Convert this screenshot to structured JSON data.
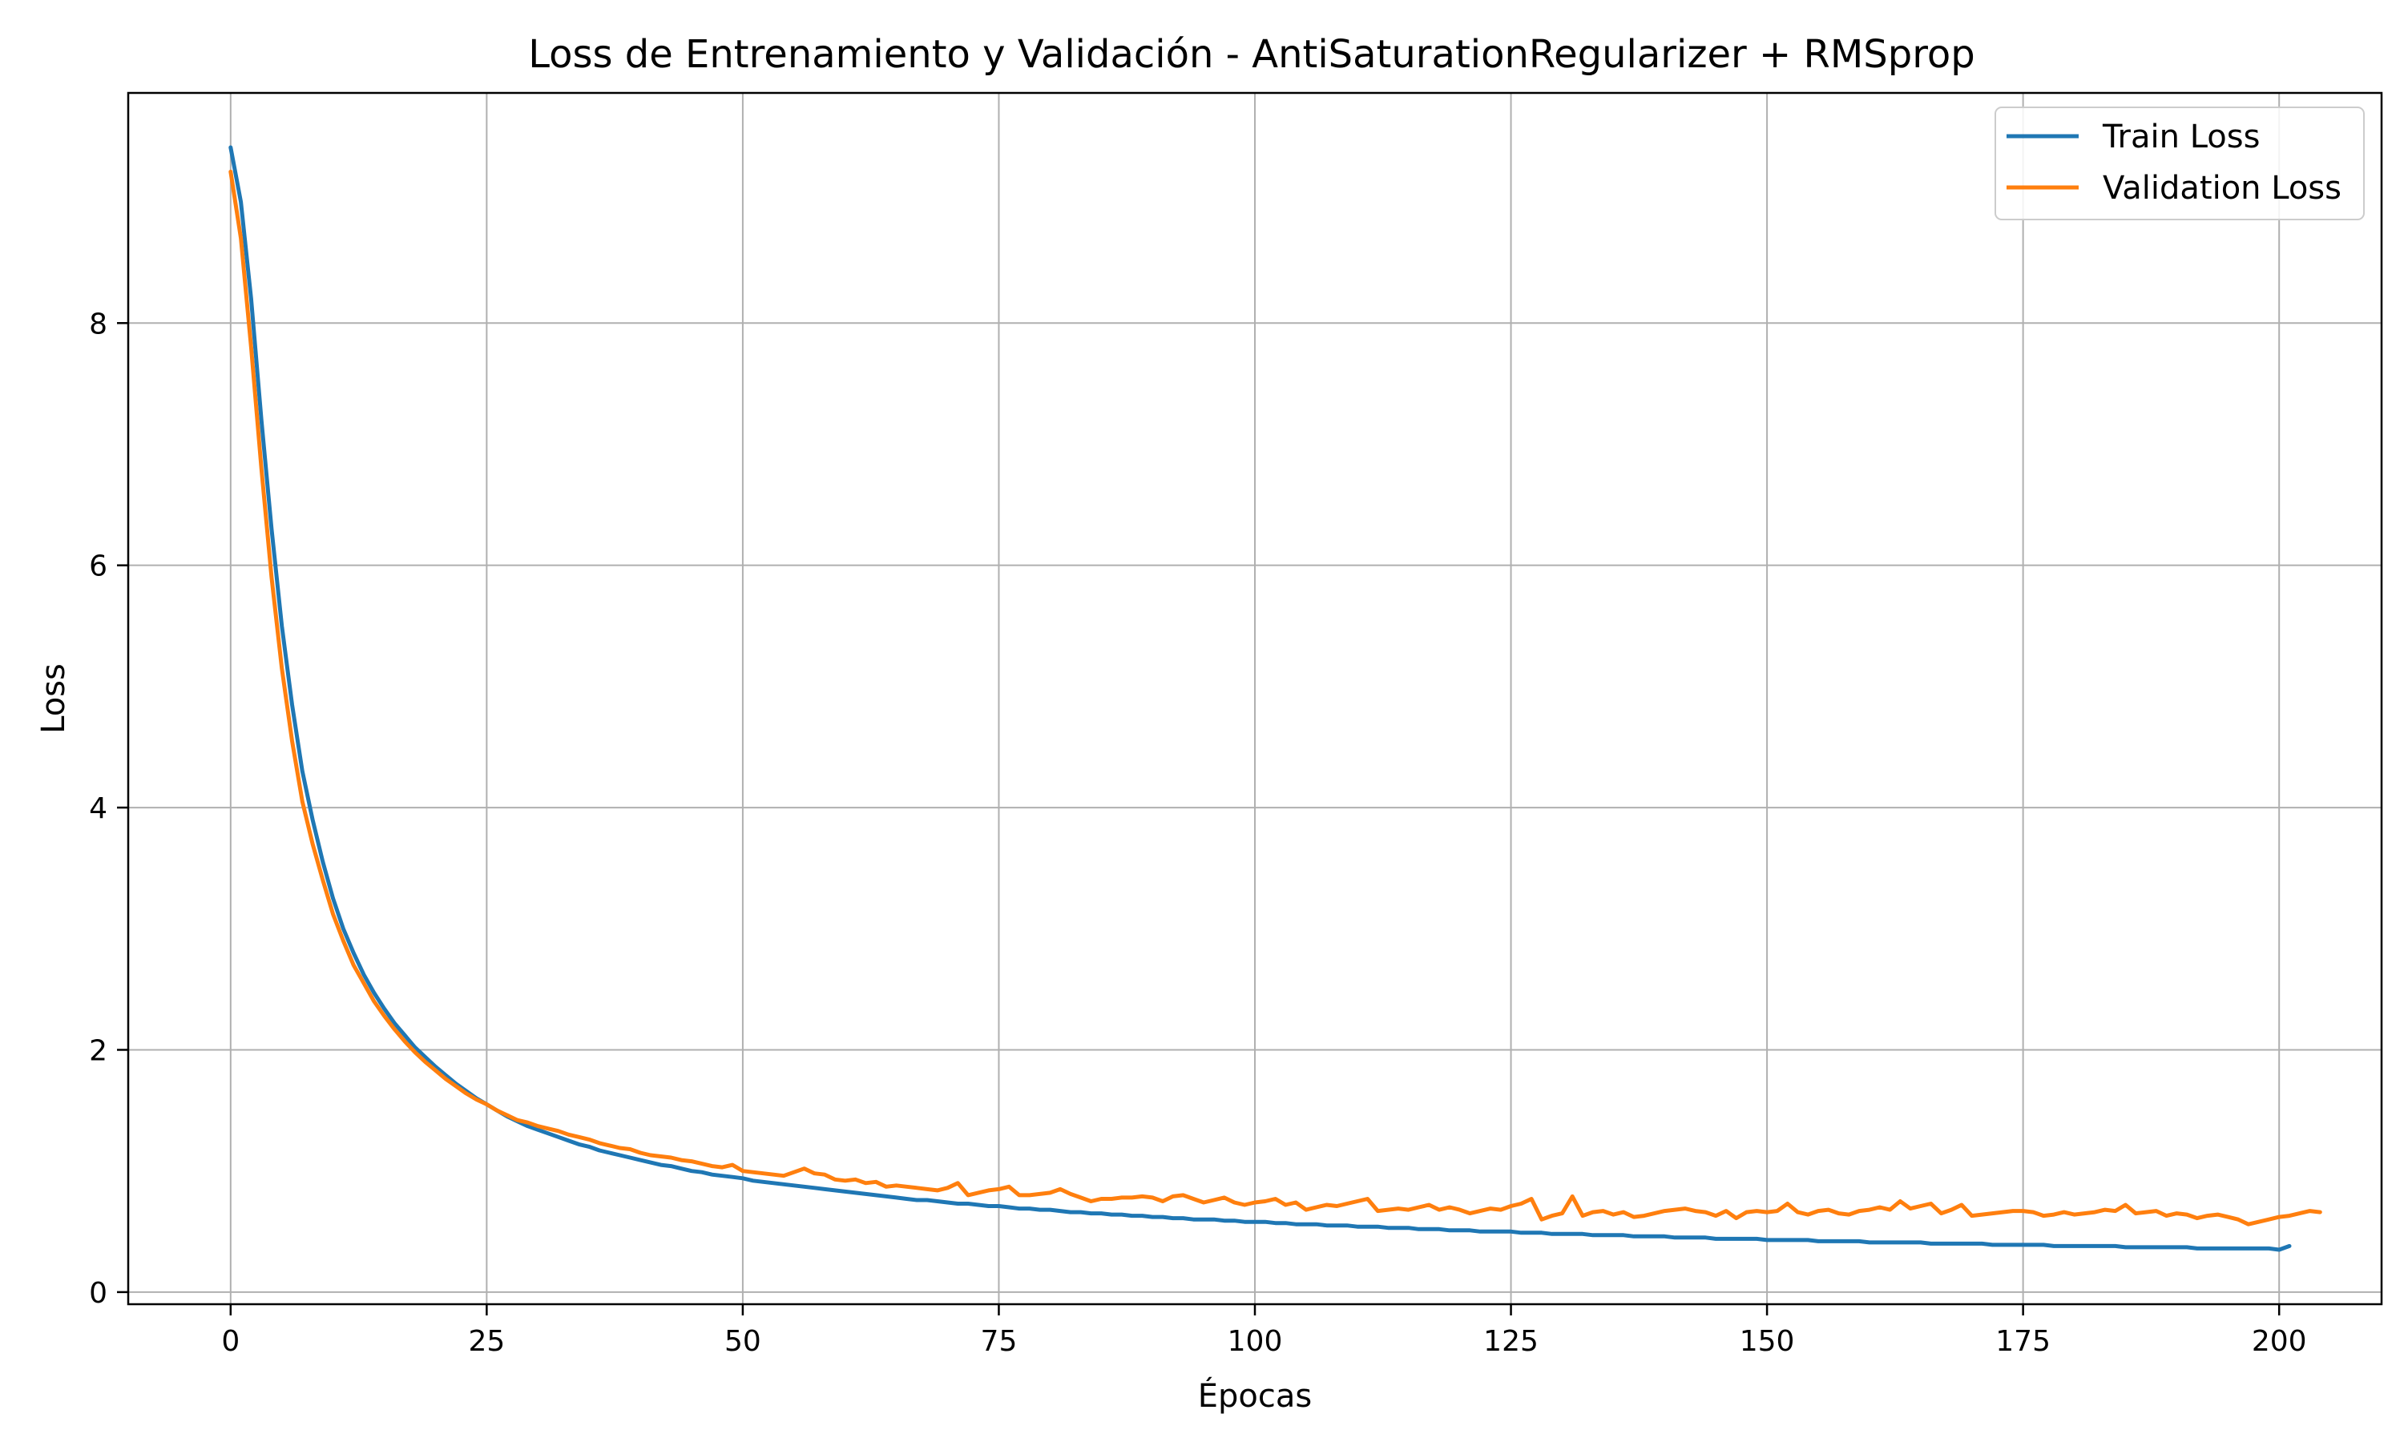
{
  "chart_data": {
    "type": "line",
    "title": "Loss de Entrenamiento y Validación - AntiSaturationRegularizer + RMSprop",
    "xlabel": "Épocas",
    "ylabel": "Loss",
    "xlim": [
      -10,
      210
    ],
    "ylim": [
      -0.1,
      9.9
    ],
    "xticks": [
      0,
      25,
      50,
      75,
      100,
      125,
      150,
      175,
      200
    ],
    "yticks": [
      0,
      2,
      4,
      6,
      8
    ],
    "grid": true,
    "legend_position": "top-right",
    "x_start": 0,
    "x_step": 1,
    "series": [
      {
        "name": "Train Loss",
        "color": "#1f77b4",
        "values": [
          9.45,
          9.0,
          8.2,
          7.2,
          6.3,
          5.5,
          4.85,
          4.3,
          3.9,
          3.55,
          3.25,
          3.0,
          2.8,
          2.62,
          2.47,
          2.34,
          2.22,
          2.12,
          2.02,
          1.94,
          1.86,
          1.79,
          1.72,
          1.66,
          1.6,
          1.55,
          1.5,
          1.45,
          1.41,
          1.37,
          1.34,
          1.31,
          1.28,
          1.25,
          1.22,
          1.2,
          1.17,
          1.15,
          1.13,
          1.11,
          1.09,
          1.07,
          1.05,
          1.04,
          1.02,
          1.0,
          0.99,
          0.97,
          0.96,
          0.95,
          0.94,
          0.92,
          0.91,
          0.9,
          0.89,
          0.88,
          0.87,
          0.86,
          0.85,
          0.84,
          0.83,
          0.82,
          0.81,
          0.8,
          0.79,
          0.78,
          0.77,
          0.76,
          0.76,
          0.75,
          0.74,
          0.73,
          0.73,
          0.72,
          0.71,
          0.71,
          0.7,
          0.69,
          0.69,
          0.68,
          0.68,
          0.67,
          0.66,
          0.66,
          0.65,
          0.65,
          0.64,
          0.64,
          0.63,
          0.63,
          0.62,
          0.62,
          0.61,
          0.61,
          0.6,
          0.6,
          0.6,
          0.59,
          0.59,
          0.58,
          0.58,
          0.58,
          0.57,
          0.57,
          0.56,
          0.56,
          0.56,
          0.55,
          0.55,
          0.55,
          0.54,
          0.54,
          0.54,
          0.53,
          0.53,
          0.53,
          0.52,
          0.52,
          0.52,
          0.51,
          0.51,
          0.51,
          0.5,
          0.5,
          0.5,
          0.5,
          0.49,
          0.49,
          0.49,
          0.48,
          0.48,
          0.48,
          0.48,
          0.47,
          0.47,
          0.47,
          0.47,
          0.46,
          0.46,
          0.46,
          0.46,
          0.45,
          0.45,
          0.45,
          0.45,
          0.44,
          0.44,
          0.44,
          0.44,
          0.44,
          0.43,
          0.43,
          0.43,
          0.43,
          0.43,
          0.42,
          0.42,
          0.42,
          0.42,
          0.42,
          0.41,
          0.41,
          0.41,
          0.41,
          0.41,
          0.41,
          0.4,
          0.4,
          0.4,
          0.4,
          0.4,
          0.4,
          0.39,
          0.39,
          0.39,
          0.39,
          0.39,
          0.39,
          0.38,
          0.38,
          0.38,
          0.38,
          0.38,
          0.38,
          0.38,
          0.37,
          0.37,
          0.37,
          0.37,
          0.37,
          0.37,
          0.37,
          0.36,
          0.36,
          0.36,
          0.36,
          0.36,
          0.36,
          0.36,
          0.36,
          0.35,
          0.38
        ]
      },
      {
        "name": "Validation Loss",
        "color": "#ff7f0e",
        "values": [
          9.25,
          8.7,
          7.8,
          6.8,
          5.9,
          5.15,
          4.55,
          4.05,
          3.7,
          3.4,
          3.12,
          2.9,
          2.7,
          2.55,
          2.4,
          2.28,
          2.17,
          2.07,
          1.98,
          1.9,
          1.83,
          1.76,
          1.7,
          1.64,
          1.59,
          1.55,
          1.5,
          1.46,
          1.42,
          1.4,
          1.37,
          1.35,
          1.33,
          1.3,
          1.28,
          1.26,
          1.23,
          1.21,
          1.19,
          1.18,
          1.15,
          1.13,
          1.12,
          1.11,
          1.09,
          1.08,
          1.06,
          1.04,
          1.03,
          1.05,
          1.0,
          0.99,
          0.98,
          0.97,
          0.96,
          0.99,
          1.02,
          0.98,
          0.97,
          0.93,
          0.92,
          0.93,
          0.9,
          0.91,
          0.87,
          0.88,
          0.87,
          0.86,
          0.85,
          0.84,
          0.86,
          0.9,
          0.8,
          0.82,
          0.84,
          0.85,
          0.87,
          0.8,
          0.8,
          0.81,
          0.82,
          0.85,
          0.81,
          0.78,
          0.75,
          0.77,
          0.77,
          0.78,
          0.78,
          0.79,
          0.78,
          0.75,
          0.79,
          0.8,
          0.77,
          0.74,
          0.76,
          0.78,
          0.74,
          0.72,
          0.74,
          0.75,
          0.77,
          0.72,
          0.74,
          0.68,
          0.7,
          0.72,
          0.71,
          0.73,
          0.75,
          0.77,
          0.67,
          0.68,
          0.69,
          0.68,
          0.7,
          0.72,
          0.68,
          0.7,
          0.68,
          0.65,
          0.67,
          0.69,
          0.68,
          0.71,
          0.73,
          0.77,
          0.6,
          0.63,
          0.65,
          0.79,
          0.63,
          0.66,
          0.67,
          0.64,
          0.66,
          0.62,
          0.63,
          0.65,
          0.67,
          0.68,
          0.69,
          0.67,
          0.66,
          0.63,
          0.67,
          0.61,
          0.66,
          0.67,
          0.66,
          0.67,
          0.73,
          0.66,
          0.64,
          0.67,
          0.68,
          0.65,
          0.64,
          0.67,
          0.68,
          0.7,
          0.68,
          0.75,
          0.69,
          0.71,
          0.73,
          0.65,
          0.68,
          0.72,
          0.63,
          0.64,
          0.65,
          0.66,
          0.67,
          0.67,
          0.66,
          0.63,
          0.64,
          0.66,
          0.64,
          0.65,
          0.66,
          0.68,
          0.67,
          0.72,
          0.65,
          0.66,
          0.67,
          0.63,
          0.65,
          0.64,
          0.61,
          0.63,
          0.64,
          0.62,
          0.6,
          0.56,
          0.58,
          0.6,
          0.62,
          0.63,
          0.65,
          0.67,
          0.66
        ]
      }
    ]
  }
}
